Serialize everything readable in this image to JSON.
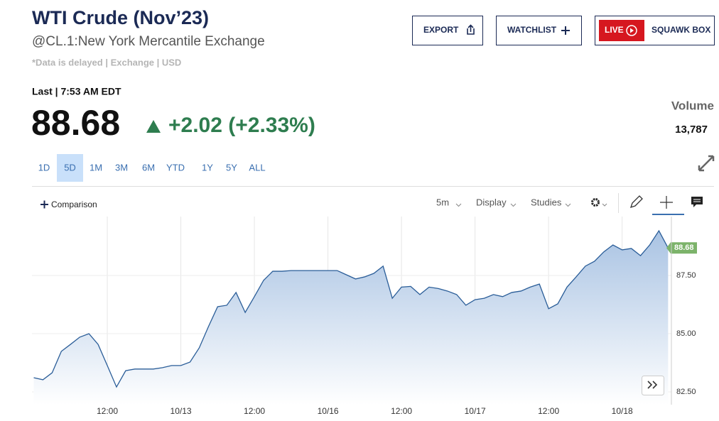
{
  "header": {
    "title": "WTI Crude (Nov’23)",
    "subtitle": "@CL.1:New York Mercantile Exchange",
    "note": "*Data is delayed | Exchange | USD"
  },
  "buttons": {
    "export": "EXPORT",
    "watchlist": "WATCHLIST",
    "live": "LIVE",
    "squawk": "SQUAWK BOX"
  },
  "quote": {
    "last_label": "Last | 7:53 AM EDT",
    "price": "88.68",
    "change": "+2.02 (+2.33%)",
    "volume_label": "Volume",
    "volume": "13,787"
  },
  "periods": [
    "1D",
    "5D",
    "1M",
    "3M",
    "6M",
    "YTD",
    "1Y",
    "5Y",
    "ALL"
  ],
  "active_period": "5D",
  "toolbar": {
    "comparison": "Comparison",
    "interval": "5m",
    "display": "Display",
    "studies": "Studies"
  },
  "chart_data": {
    "type": "area",
    "color": "#2a5d98",
    "categories": [
      null,
      null,
      null,
      null,
      null,
      null,
      null,
      null,
      "12:00",
      null,
      null,
      null,
      null,
      null,
      null,
      null,
      "10/13",
      null,
      null,
      null,
      null,
      null,
      null,
      null,
      "12:00",
      null,
      null,
      null,
      null,
      null,
      null,
      null,
      "10/16",
      null,
      null,
      null,
      null,
      null,
      null,
      null,
      "12:00",
      null,
      null,
      null,
      null,
      null,
      null,
      null,
      "10/17",
      null,
      null,
      null,
      null,
      null,
      null,
      null,
      "12:00",
      null,
      null,
      null,
      null,
      null,
      null,
      null,
      "10/18",
      null,
      null,
      null,
      null,
      null
    ],
    "values": [
      83.11,
      83.02,
      83.32,
      84.24,
      84.54,
      84.85,
      85.0,
      84.54,
      83.63,
      82.71,
      83.41,
      83.48,
      83.48,
      83.48,
      83.54,
      83.63,
      83.63,
      83.78,
      84.39,
      85.3,
      86.16,
      86.22,
      86.77,
      85.91,
      86.59,
      87.29,
      87.68,
      87.68,
      87.71,
      87.71,
      87.71,
      87.71,
      87.71,
      87.71,
      87.53,
      87.35,
      87.44,
      87.59,
      87.9,
      86.52,
      87.0,
      87.03,
      86.68,
      87.0,
      86.94,
      86.83,
      86.68,
      86.22,
      86.46,
      86.52,
      86.68,
      86.59,
      86.77,
      86.83,
      87.0,
      87.13,
      86.07,
      86.28,
      87.0,
      87.44,
      87.9,
      88.11,
      88.51,
      88.81,
      88.6,
      88.66,
      88.35,
      88.81,
      89.42,
      88.68
    ],
    "ylim": [
      81.95,
      90.03
    ],
    "yticks": [
      {
        "value": 82.5,
        "label": "82.50"
      },
      {
        "value": 85,
        "label": "85.00"
      },
      {
        "value": 87.5,
        "label": "87.50"
      }
    ],
    "grid": true
  }
}
